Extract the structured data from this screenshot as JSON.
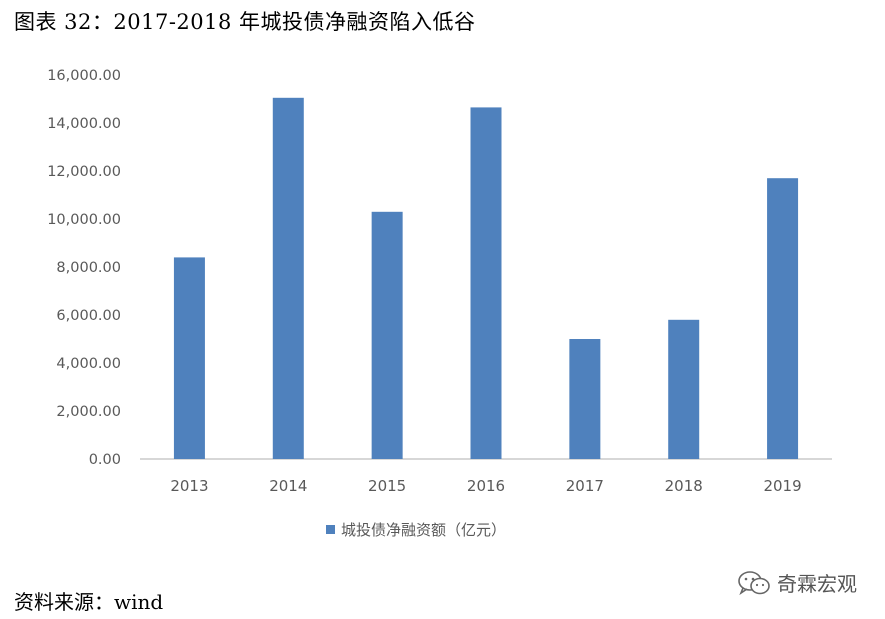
{
  "figure": {
    "title": "图表 32：2017-2018 年城投债净融资陷入低谷",
    "source": "资料来源：wind",
    "watermark": "奇霖宏观"
  },
  "colors": {
    "bar": "#4f81bd",
    "axis": "#bfbfbf",
    "tick_text": "#595959"
  },
  "chart_data": {
    "type": "bar",
    "categories": [
      "2013",
      "2014",
      "2015",
      "2016",
      "2017",
      "2018",
      "2019"
    ],
    "series": [
      {
        "name": "城投债净融资额（亿元）",
        "values": [
          8400,
          15050,
          10300,
          14650,
          5000,
          5800,
          11700
        ]
      }
    ],
    "ylim": [
      0,
      16000
    ],
    "yticks": [
      0,
      2000,
      4000,
      6000,
      8000,
      10000,
      12000,
      14000,
      16000
    ],
    "ytick_labels": [
      "0.00",
      "2,000.00",
      "4,000.00",
      "6,000.00",
      "8,000.00",
      "10,000.00",
      "12,000.00",
      "14,000.00",
      "16,000.00"
    ],
    "grid": false,
    "legend": "bottom"
  }
}
